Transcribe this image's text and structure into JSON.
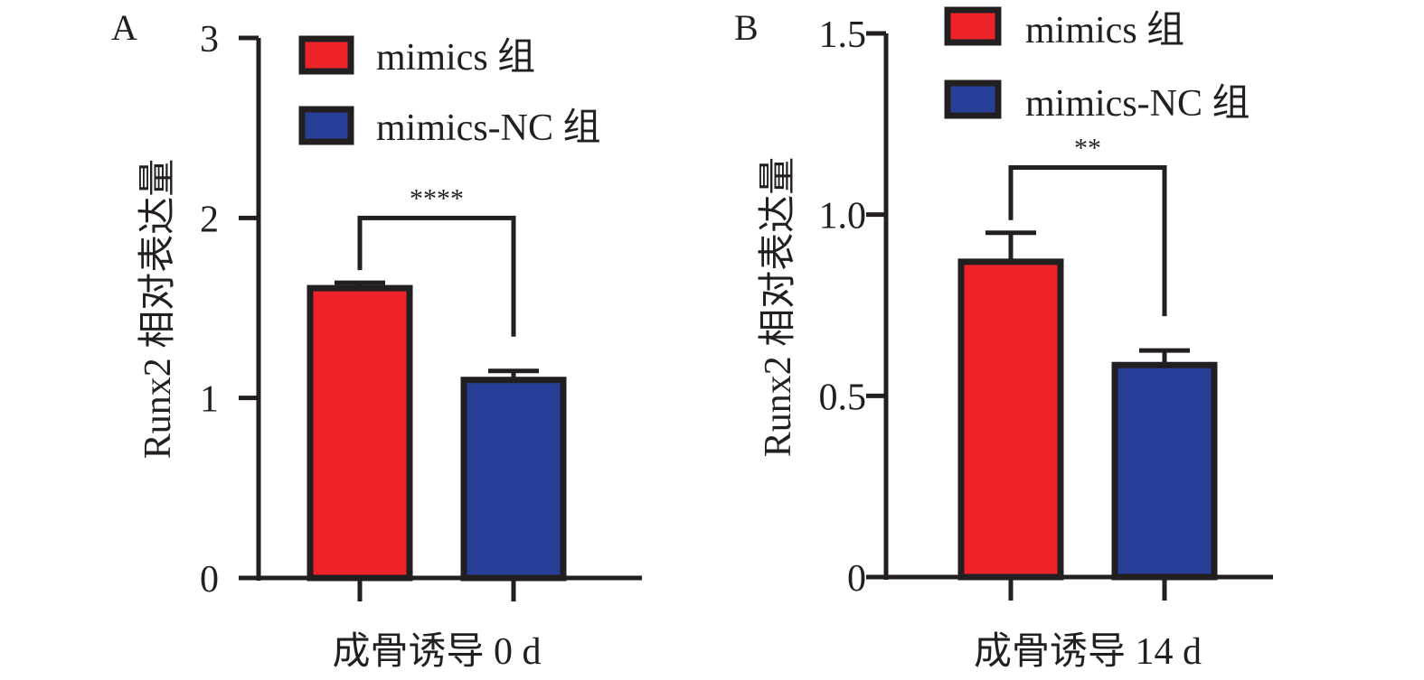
{
  "colors": {
    "mimics": "#ee2229",
    "mimics_nc": "#283f98",
    "axis": "#231f20"
  },
  "chart_data": [
    {
      "type": "bar",
      "panel_label": "A",
      "xlabel": "成骨诱导 0 d",
      "ylabel": "Runx2 相对表达量",
      "ylim": [
        0,
        3
      ],
      "yticks": [
        0,
        1,
        2,
        3
      ],
      "ytick_labels": [
        "0",
        "1",
        "2",
        "3"
      ],
      "series": [
        {
          "name": "mimics 组",
          "value": 1.61,
          "error": 0.03
        },
        {
          "name": "mimics-NC 组",
          "value": 1.1,
          "error": 0.05
        }
      ],
      "legend": [
        "mimics 组",
        "mimics-NC 组"
      ],
      "legend_position": "top-right",
      "significance": {
        "label": "****",
        "bracket_y": 2.0
      }
    },
    {
      "type": "bar",
      "panel_label": "B",
      "xlabel": "成骨诱导 14 d",
      "ylabel": "Runx2 相对表达量",
      "ylim": [
        0,
        1.5
      ],
      "yticks": [
        0,
        0.5,
        1.0,
        1.5
      ],
      "ytick_labels": [
        "0",
        "0.5",
        "1.0",
        "1.5"
      ],
      "series": [
        {
          "name": "mimics 组",
          "value": 0.87,
          "error": 0.08
        },
        {
          "name": "mimics-NC 组",
          "value": 0.585,
          "error": 0.04
        }
      ],
      "legend": [
        "mimics 组",
        "mimics-NC 组"
      ],
      "legend_position": "top-right",
      "significance": {
        "label": "**",
        "bracket_y": 1.13
      }
    }
  ]
}
